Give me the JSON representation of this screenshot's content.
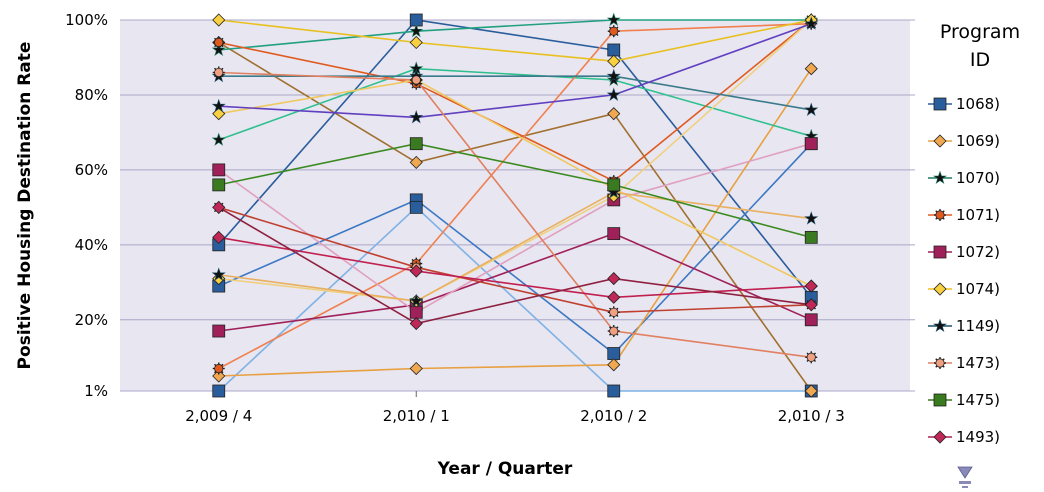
{
  "chart_data": {
    "type": "line",
    "title": "",
    "xlabel": "Year / Quarter",
    "ylabel": "Positive Housing Destination Rate",
    "categories": [
      "2,009 / 4",
      "2,010 / 1",
      "2,010 / 2",
      "2,010 / 3"
    ],
    "yticks": [
      {
        "value": 1,
        "label": "1%"
      },
      {
        "value": 20,
        "label": "20%"
      },
      {
        "value": 40,
        "label": "40%"
      },
      {
        "value": 60,
        "label": "60%"
      },
      {
        "value": 80,
        "label": "80%"
      },
      {
        "value": 100,
        "label": "100%"
      }
    ],
    "ylim": [
      1,
      100
    ],
    "grid": true,
    "legend_title": "Program ID",
    "legend_placement": "right",
    "series": [
      {
        "name": "1068)",
        "marker": "square",
        "color": "#2a5d9c",
        "fill": "#2a5d9c",
        "lines": [
          {
            "color": "#2a5d9c",
            "values": [
              40,
              100,
              92,
              26
            ]
          },
          {
            "color": "#3b78c4",
            "values": [
              29,
              52,
              11,
              67
            ]
          },
          {
            "color": "#7fb2e5",
            "values": [
              1,
              50,
              1,
              1
            ]
          }
        ]
      },
      {
        "name": "1069)",
        "marker": "diamond",
        "color": "#e8a040",
        "fill": "#f0a850",
        "lines": [
          {
            "color": "#e8a040",
            "values": [
              5,
              7,
              8,
              87
            ]
          },
          {
            "color": "#a07030",
            "values": [
              94,
              62,
              75,
              1
            ]
          }
        ]
      },
      {
        "name": "1070)",
        "marker": "star",
        "color": "#1f7a60",
        "fill": "#1f7a60",
        "lines": [
          {
            "color": "#20a080",
            "values": [
              92,
              97,
              100,
              100
            ]
          },
          {
            "color": "#30c090",
            "values": [
              68,
              87,
              84,
              69
            ]
          }
        ]
      },
      {
        "name": "1071)",
        "marker": "gear",
        "color": "#e05a20",
        "fill": "#e05a20",
        "lines": [
          {
            "color": "#e05a20",
            "values": [
              94,
              83,
              57,
              100
            ]
          },
          {
            "color": "#f08050",
            "values": [
              7,
              35,
              97,
              99
            ]
          }
        ]
      },
      {
        "name": "1072)",
        "marker": "square",
        "color": "#a0205a",
        "fill": "#a0205a",
        "lines": [
          {
            "color": "#a0205a",
            "values": [
              17,
              24,
              43,
              20
            ]
          },
          {
            "color": "#e0a0c0",
            "values": [
              60,
              22,
              52,
              67
            ]
          }
        ]
      },
      {
        "name": "1074)",
        "marker": "diamond",
        "color": "#f0c020",
        "fill": "#f8d040",
        "lines": [
          {
            "color": "#e8c020",
            "values": [
              100,
              94,
              89,
              100
            ]
          },
          {
            "color": "#f0c860",
            "values": [
              75,
              84,
              55,
              29
            ]
          },
          {
            "color": "#f0d080",
            "values": [
              31,
              25,
              53,
              100
            ]
          }
        ]
      },
      {
        "name": "1149)",
        "marker": "star",
        "color": "#1f4f6a",
        "fill": "#1f4f6a",
        "lines": [
          {
            "color": "#3a7a8a",
            "values": [
              85,
              85,
              85,
              76
            ]
          },
          {
            "color": "#6040c0",
            "values": [
              77,
              74,
              80,
              99
            ]
          },
          {
            "color": "#e8b060",
            "values": [
              32,
              25,
              54,
              47
            ]
          }
        ]
      },
      {
        "name": "1473)",
        "marker": "gear",
        "color": "#e08060",
        "fill": "#f0a080",
        "lines": [
          {
            "color": "#e08060",
            "values": [
              86,
              84,
              17,
              10
            ]
          },
          {
            "color": "#c04030",
            "values": [
              50,
              34,
              22,
              24
            ]
          }
        ]
      },
      {
        "name": "1475)",
        "marker": "square",
        "color": "#3a7a20",
        "fill": "#3a7a20",
        "lines": [
          {
            "color": "#3a8a20",
            "values": [
              56,
              67,
              56,
              42
            ]
          }
        ]
      },
      {
        "name": "1493)",
        "marker": "diamond",
        "color": "#b02050",
        "fill": "#c02858",
        "lines": [
          {
            "color": "#c02050",
            "values": [
              42,
              33,
              26,
              29
            ]
          },
          {
            "color": "#902040",
            "values": [
              50,
              19,
              31,
              24
            ]
          }
        ]
      }
    ],
    "legend_more_icon": "scroll-down-arrow-icon"
  }
}
